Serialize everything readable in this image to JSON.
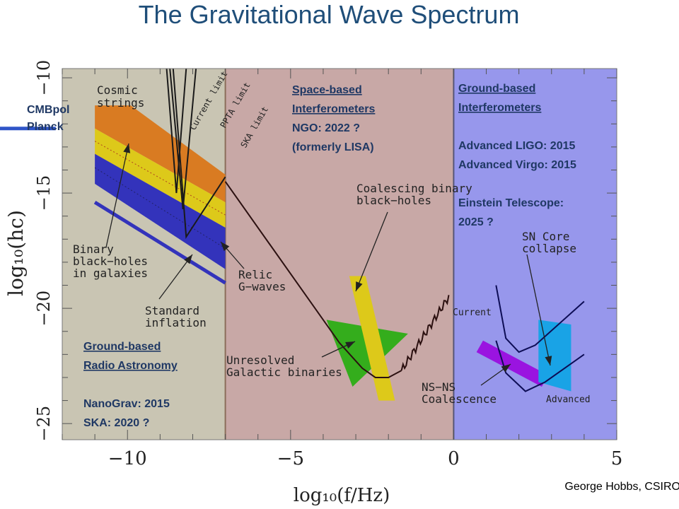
{
  "title": "The Gravitational Wave Spectrum",
  "credit": "George Hobbs, CSIRO",
  "colors": {
    "radio_bg": "#c9c5b3",
    "space_bg": "#c8a8a6",
    "ground_bg": "#9797ec",
    "cosmic": "#d97b22",
    "yellow": "#ddc91a",
    "blue": "#3333bb",
    "green": "#34ad1c",
    "purple": "#9a14e0",
    "cyan": "#19a3e6",
    "title": "#1f4e79",
    "region_text": "#1f3864"
  },
  "chart_data": {
    "type": "area",
    "title": "The Gravitational Wave Spectrum",
    "xlabel": "log₁₀(f/Hz)",
    "ylabel": "log₁₀(h_c)",
    "xlim": [
      -12,
      5
    ],
    "ylim": [
      -25.7,
      -9.6
    ],
    "xticks": [
      -10,
      -5,
      0,
      5
    ],
    "xtick_labels": [
      "−10",
      "−5",
      "0",
      "5"
    ],
    "yticks": [
      -10,
      -15,
      -20,
      -25
    ],
    "ytick_labels": [
      "−10",
      "−15",
      "−20",
      "−25"
    ],
    "grid": false,
    "regions": [
      {
        "name": "radio",
        "x_range": [
          -12,
          -7
        ],
        "heading": [
          "Ground-based",
          "Radio Astronomy"
        ],
        "lines": [
          "NanoGrav: 2015",
          "SKA: 2020 ?"
        ]
      },
      {
        "name": "space",
        "x_range": [
          -7,
          0
        ],
        "heading": [
          "Space-based",
          "Interferometers"
        ],
        "lines": [
          "NGO: 2022 ?",
          "(formerly LISA)"
        ]
      },
      {
        "name": "ground",
        "x_range": [
          0,
          5
        ],
        "heading": [
          "Ground-based",
          "Interferometers"
        ],
        "lines": [
          "Advanced LIGO: 2015",
          "Advanced Virgo: 2015",
          "",
          "Einstein Telescope:",
          "2025 ?"
        ]
      }
    ],
    "annotations": {
      "cosmic": [
        "Cosmic",
        "strings"
      ],
      "binary_bh": [
        "Binary",
        "black−holes",
        "in galaxies"
      ],
      "standard": [
        "Standard",
        "inflation"
      ],
      "relic": [
        "Relic",
        "G−waves"
      ],
      "coalescing": [
        "Coalescing binary",
        "black−holes"
      ],
      "unresolved": [
        "Unresolved",
        "Galactic binaries"
      ],
      "sn": [
        "SN Core",
        "collapse"
      ],
      "nsns": [
        "NS−NS",
        "Coalescence"
      ],
      "current_limit": "Current limit",
      "ppta_limit": "PPTA limit",
      "ska_limit": "SKA limit",
      "current": "Current",
      "advanced": "Advanced",
      "cmbpol": [
        "CMBpol",
        "Planck"
      ]
    },
    "sources": [
      {
        "name": "Cosmic strings",
        "polygon": [
          [
            -11.0,
            -11.2
          ],
          [
            -9.9,
            -11.2
          ],
          [
            -7.0,
            -14.2
          ],
          [
            -7.0,
            -15.4
          ],
          [
            -11.0,
            -12.2
          ]
        ]
      },
      {
        "name": "Binary black-holes (yellow band)",
        "polygon": [
          [
            -11.0,
            -12.2
          ],
          [
            -7.0,
            -15.4
          ],
          [
            -7.0,
            -16.5
          ],
          [
            -11.0,
            -13.3
          ]
        ]
      },
      {
        "name": "Binary black-holes (blue band)",
        "polygon": [
          [
            -11.0,
            -13.3
          ],
          [
            -7.0,
            -16.5
          ],
          [
            -7.0,
            -18.3
          ],
          [
            -11.0,
            -14.6
          ]
        ]
      },
      {
        "name": "Standard inflation",
        "line": [
          [
            -11.0,
            -15.4
          ],
          [
            -7.0,
            -18.9
          ]
        ]
      },
      {
        "name": "Unresolved Galactic binaries",
        "polygon": [
          [
            -3.9,
            -20.5
          ],
          [
            -1.4,
            -21.1
          ],
          [
            -3.1,
            -23.4
          ]
        ]
      },
      {
        "name": "Coalescing binary black-holes",
        "polygon": [
          [
            -3.2,
            -18.6
          ],
          [
            -2.7,
            -18.6
          ],
          [
            -1.8,
            -24.0
          ],
          [
            -2.3,
            -24.0
          ]
        ]
      },
      {
        "name": "NS-NS Coalescence",
        "polygon": [
          [
            0.9,
            -21.4
          ],
          [
            2.9,
            -22.9
          ],
          [
            2.7,
            -23.4
          ],
          [
            0.7,
            -21.9
          ]
        ]
      },
      {
        "name": "SN Core collapse",
        "polygon": [
          [
            2.6,
            -20.5
          ],
          [
            3.6,
            -20.7
          ],
          [
            3.6,
            -23.6
          ],
          [
            2.6,
            -23.2
          ]
        ]
      }
    ],
    "curves": [
      {
        "name": "Current limit",
        "points": [
          [
            -8.8,
            -9.6
          ],
          [
            -8.5,
            -15.0
          ],
          [
            -8.2,
            -9.6
          ]
        ]
      },
      {
        "name": "PPTA limit",
        "points": [
          [
            -8.7,
            -9.6
          ],
          [
            -8.3,
            -15.7
          ],
          [
            -7.9,
            -9.6
          ]
        ]
      },
      {
        "name": "SKA limit",
        "points": [
          [
            -8.6,
            -9.6
          ],
          [
            -8.2,
            -16.9
          ],
          [
            -7.0,
            -14.3
          ]
        ]
      },
      {
        "name": "NGO / LISA sensitivity",
        "points": [
          [
            -7.0,
            -14.5
          ],
          [
            -4.5,
            -19.5
          ],
          [
            -3.5,
            -21.5
          ],
          [
            -2.8,
            -22.6
          ],
          [
            -2.4,
            -23.0
          ],
          [
            -2.0,
            -23.0
          ],
          [
            -1.6,
            -22.7
          ]
        ]
      },
      {
        "name": "Current (ground)",
        "points": [
          [
            1.3,
            -19.0
          ],
          [
            1.6,
            -21.3
          ],
          [
            2.0,
            -21.9
          ],
          [
            2.5,
            -21.6
          ],
          [
            4.0,
            -19.7
          ]
        ]
      },
      {
        "name": "Advanced (ground)",
        "points": [
          [
            1.3,
            -21.4
          ],
          [
            1.6,
            -22.8
          ],
          [
            2.2,
            -23.6
          ],
          [
            2.8,
            -23.2
          ],
          [
            4.0,
            -22.0
          ]
        ]
      }
    ]
  }
}
